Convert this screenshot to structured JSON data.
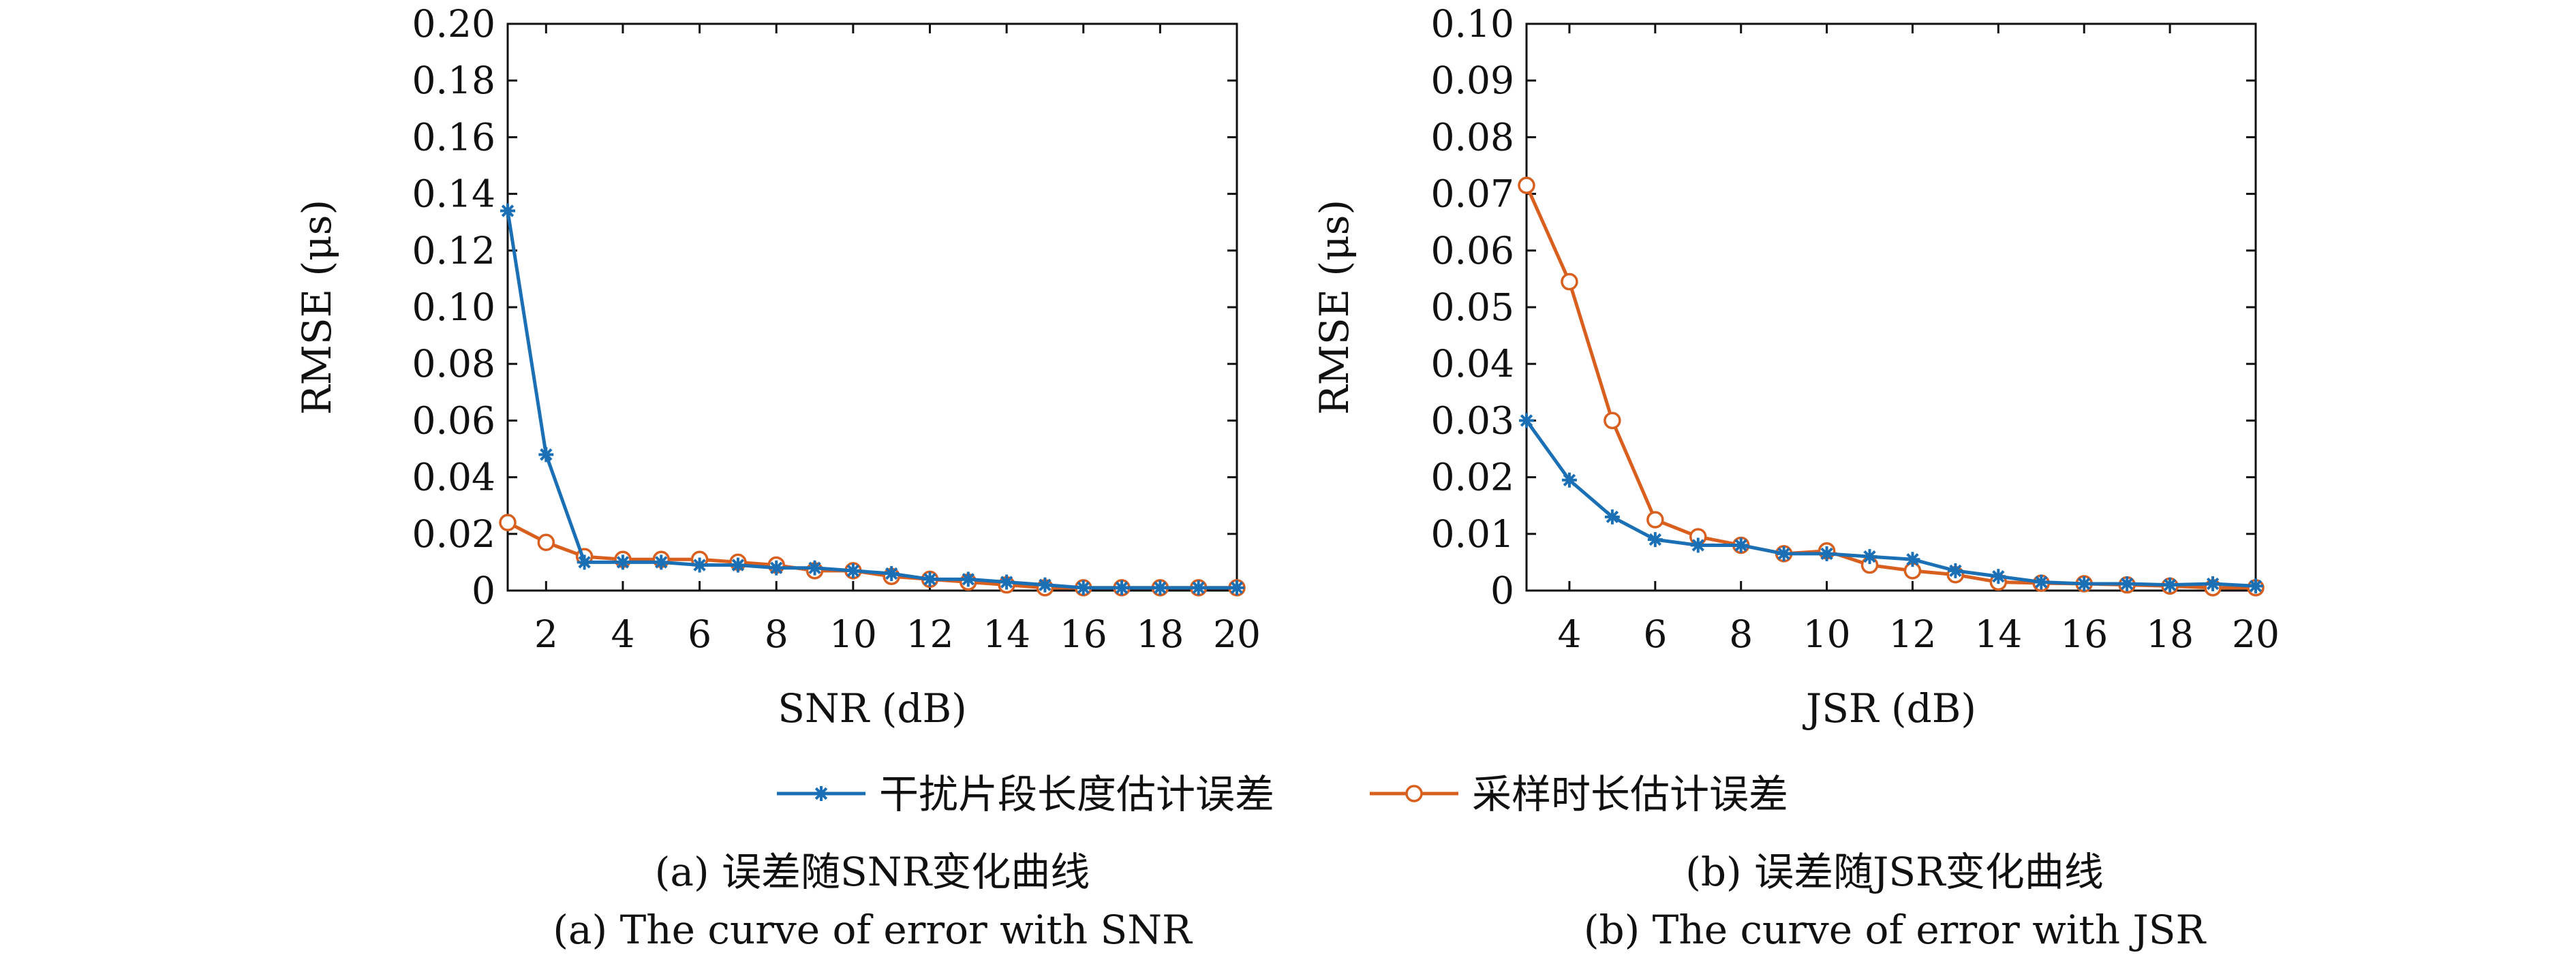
{
  "legend": {
    "series": [
      {
        "name": "干扰片段长度估计误差",
        "color": "#1a6fb5",
        "marker": "asterisk"
      },
      {
        "name": "采样时长估计误差",
        "color": "#d95f1e",
        "marker": "circle"
      }
    ]
  },
  "chart_data": [
    {
      "type": "line",
      "xlabel": "SNR (dB)",
      "ylabel": "RMSE (μs)",
      "xlim": [
        1,
        20
      ],
      "ylim": [
        0,
        0.2
      ],
      "xticks": [
        2,
        4,
        6,
        8,
        10,
        12,
        14,
        16,
        18,
        20
      ],
      "yticks": [
        0,
        0.02,
        0.04,
        0.06,
        0.08,
        0.1,
        0.12,
        0.14,
        0.16,
        0.18,
        0.2
      ],
      "ytick_labels": [
        "0",
        "0.02",
        "0.04",
        "0.06",
        "0.08",
        "0.10",
        "0.12",
        "0.14",
        "0.16",
        "0.18",
        "0.20"
      ],
      "x": [
        1,
        2,
        3,
        4,
        5,
        6,
        7,
        8,
        9,
        10,
        11,
        12,
        13,
        14,
        15,
        16,
        17,
        18,
        19,
        20
      ],
      "series": [
        {
          "name": "干扰片段长度估计误差",
          "values": [
            0.134,
            0.048,
            0.01,
            0.01,
            0.01,
            0.009,
            0.009,
            0.008,
            0.008,
            0.007,
            0.006,
            0.004,
            0.004,
            0.003,
            0.002,
            0.001,
            0.001,
            0.001,
            0.001,
            0.001
          ]
        },
        {
          "name": "采样时长估计误差",
          "values": [
            0.024,
            0.017,
            0.012,
            0.011,
            0.011,
            0.011,
            0.01,
            0.009,
            0.007,
            0.007,
            0.005,
            0.004,
            0.003,
            0.002,
            0.001,
            0.001,
            0.001,
            0.001,
            0.001,
            0.001
          ]
        }
      ],
      "caption_cn": "(a) 误差随SNR变化曲线",
      "caption_en": "(a) The curve of error with SNR"
    },
    {
      "type": "line",
      "xlabel": "JSR (dB)",
      "ylabel": "RMSE (μs)",
      "xlim": [
        3,
        20
      ],
      "ylim": [
        0,
        0.1
      ],
      "xticks": [
        4,
        6,
        8,
        10,
        12,
        14,
        16,
        18,
        20
      ],
      "yticks": [
        0,
        0.01,
        0.02,
        0.03,
        0.04,
        0.05,
        0.06,
        0.07,
        0.08,
        0.09,
        0.1
      ],
      "ytick_labels": [
        "0",
        "0.01",
        "0.02",
        "0.03",
        "0.04",
        "0.05",
        "0.06",
        "0.07",
        "0.08",
        "0.09",
        "0.10"
      ],
      "x": [
        3,
        4,
        5,
        6,
        7,
        8,
        9,
        10,
        11,
        12,
        13,
        14,
        15,
        16,
        17,
        18,
        19,
        20
      ],
      "series": [
        {
          "name": "干扰片段长度估计误差",
          "values": [
            0.03,
            0.0195,
            0.013,
            0.009,
            0.008,
            0.008,
            0.0065,
            0.0065,
            0.006,
            0.0055,
            0.0035,
            0.0025,
            0.0015,
            0.0012,
            0.0012,
            0.001,
            0.0012,
            0.0008
          ]
        },
        {
          "name": "采样时长估计误差",
          "values": [
            0.0715,
            0.0545,
            0.03,
            0.0125,
            0.0095,
            0.008,
            0.0065,
            0.007,
            0.0045,
            0.0035,
            0.0028,
            0.0015,
            0.0013,
            0.0012,
            0.001,
            0.0008,
            0.0005,
            0.0005
          ]
        }
      ],
      "caption_cn": "(b) 误差随JSR变化曲线",
      "caption_en": "(b) The curve of error with JSR"
    }
  ]
}
